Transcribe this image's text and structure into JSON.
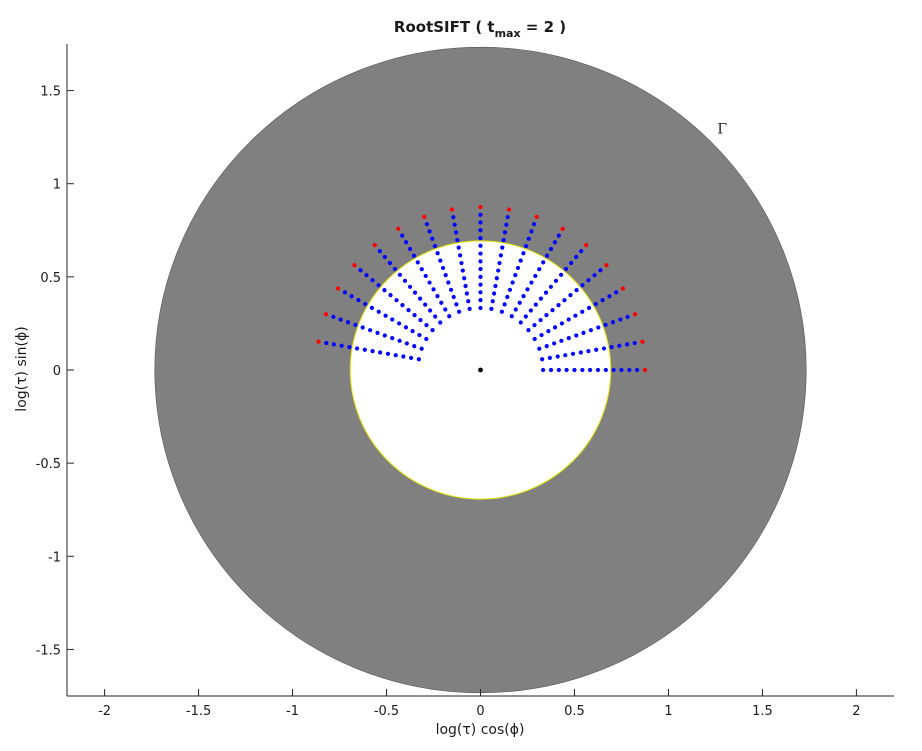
{
  "chart_data": {
    "type": "scatter",
    "title": {
      "prefix": "RootSIFT ( t",
      "subscript": "max",
      "suffix": " = 2 )"
    },
    "xlabel": "log(τ) cos(ϕ)",
    "ylabel": "log(τ) sin(ϕ)",
    "xlim": [
      -2.2,
      2.2
    ],
    "ylim": [
      -1.75,
      1.75
    ],
    "x_ticks": [
      -2,
      -1.5,
      -1,
      -0.5,
      0,
      0.5,
      1,
      1.5,
      2
    ],
    "y_ticks": [
      -1.5,
      -1,
      -0.5,
      0,
      0.5,
      1,
      1.5
    ],
    "x_tick_labels": [
      "-2",
      "-1.5",
      "-1",
      "-0.5",
      "0",
      "0.5",
      "1",
      "1.5",
      "2"
    ],
    "y_tick_labels": [
      "-1.5",
      "-1",
      "-0.5",
      "0",
      "0.5",
      "1",
      "1.5"
    ],
    "grid": false,
    "regions": {
      "outer_disk_radius": 1.733,
      "inner_disk_radius": 0.693,
      "annulus_color": "#808080",
      "inner_color": "#ffffff",
      "inner_edge_color": "#e6e600"
    },
    "annotations": [
      {
        "text": "Γ",
        "x": 1.26,
        "y": 1.27
      }
    ],
    "rays": {
      "angles_deg": [
        0,
        10,
        20,
        30,
        40,
        50,
        60,
        70,
        80,
        90,
        100,
        110,
        120,
        130,
        140,
        150,
        160,
        170
      ],
      "blue_radii": [
        0.333,
        0.375,
        0.417,
        0.458,
        0.5,
        0.542,
        0.583,
        0.625,
        0.667,
        0.708,
        0.75,
        0.792,
        0.833
      ],
      "red_radii": [
        0.875
      ]
    },
    "series": [
      {
        "color": "#0000ff",
        "marker": "dot"
      },
      {
        "color": "#ff0000",
        "marker": "dot"
      },
      {
        "color": "#000000",
        "marker": "dot",
        "points": [
          [
            0,
            0
          ]
        ]
      }
    ],
    "colors": {
      "axis": "#262626",
      "blue_series": "#0000ff",
      "red_series": "#ff0000",
      "center_point": "#000000"
    }
  }
}
